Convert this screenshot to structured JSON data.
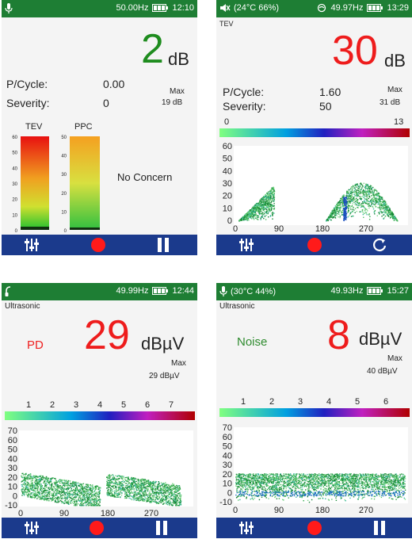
{
  "colors": {
    "statusbar": "#1e7e34",
    "bottombar": "#1b3a8c",
    "green_value": "#1e8c1e",
    "red_value": "#ee1c1c",
    "record": "#ff1a1a"
  },
  "screens": [
    {
      "status": {
        "left_icon": "microphone-icon",
        "env": "",
        "freq": "50.00Hz",
        "time": "12:10"
      },
      "mode": "",
      "main_value": "2",
      "unit": "dB",
      "p_cycle_label": "P/Cycle:",
      "p_cycle_value": "0.00",
      "severity_label": "Severity:",
      "severity_value": "0",
      "max_label": "Max",
      "max_value": "19 dB",
      "bars": {
        "tev_label": "TEV",
        "ppc_label": "PPC",
        "tev_ticks": [
          "60",
          "50",
          "40",
          "30",
          "20",
          "10",
          "0"
        ],
        "ppc_ticks": [
          "50",
          "40",
          "30",
          "20",
          "10",
          "0"
        ],
        "tev_level": 0.03,
        "ppc_level": 0.02
      },
      "status_word": "No Concern",
      "bottom_icons": [
        "sliders-icon",
        "record-icon",
        "pause-icon"
      ]
    },
    {
      "status": {
        "left_icon": "speaker-mute-icon",
        "env": "(24°C  66%)",
        "freq": "49.97Hz",
        "time": "13:29"
      },
      "mode": "TEV",
      "main_value": "30",
      "unit": "dB",
      "p_cycle_label": "P/Cycle:",
      "p_cycle_value": "1.60",
      "severity_label": "Severity:",
      "severity_value": "50",
      "max_label": "Max",
      "max_value": "31 dB",
      "scale_min": "0",
      "scale_max": "13",
      "plot": {
        "yticks": [
          "60",
          "50",
          "40",
          "30",
          "20",
          "10",
          "0"
        ],
        "xticks": [
          "0",
          "90",
          "180",
          "270"
        ]
      },
      "bottom_icons": [
        "sliders-icon",
        "record-icon",
        "reset-icon"
      ]
    },
    {
      "status": {
        "left_icon": "headset-icon",
        "env": "",
        "freq": "49.99Hz",
        "time": "12:44"
      },
      "mode": "Ultrasonic",
      "status_word": "PD",
      "main_value": "29",
      "unit": "dBµV",
      "max_label": "Max",
      "max_value": "29  dBµV",
      "scale_ticks": [
        "1",
        "2",
        "3",
        "4",
        "5",
        "6",
        "7"
      ],
      "plot": {
        "yticks": [
          "70",
          "60",
          "50",
          "40",
          "30",
          "20",
          "10",
          "0",
          "-10"
        ],
        "xticks": [
          "0",
          "90",
          "180",
          "270"
        ]
      },
      "bottom_icons": [
        "sliders-icon",
        "record-icon",
        "pause-icon"
      ]
    },
    {
      "status": {
        "left_icon": "microphone-icon",
        "env": "(30°C  44%)",
        "freq": "49.93Hz",
        "time": "15:27"
      },
      "mode": "Ultrasonic",
      "status_word": "Noise",
      "main_value": "8",
      "unit": "dBµV",
      "max_label": "Max",
      "max_value": "40  dBµV",
      "scale_ticks": [
        "1",
        "2",
        "3",
        "4",
        "5",
        "6"
      ],
      "plot": {
        "yticks": [
          "70",
          "60",
          "50",
          "40",
          "30",
          "20",
          "10",
          "0",
          "-10"
        ],
        "xticks": [
          "0",
          "90",
          "180",
          "270"
        ]
      },
      "bottom_icons": [
        "sliders-icon",
        "record-icon",
        "pause-icon"
      ]
    }
  ]
}
